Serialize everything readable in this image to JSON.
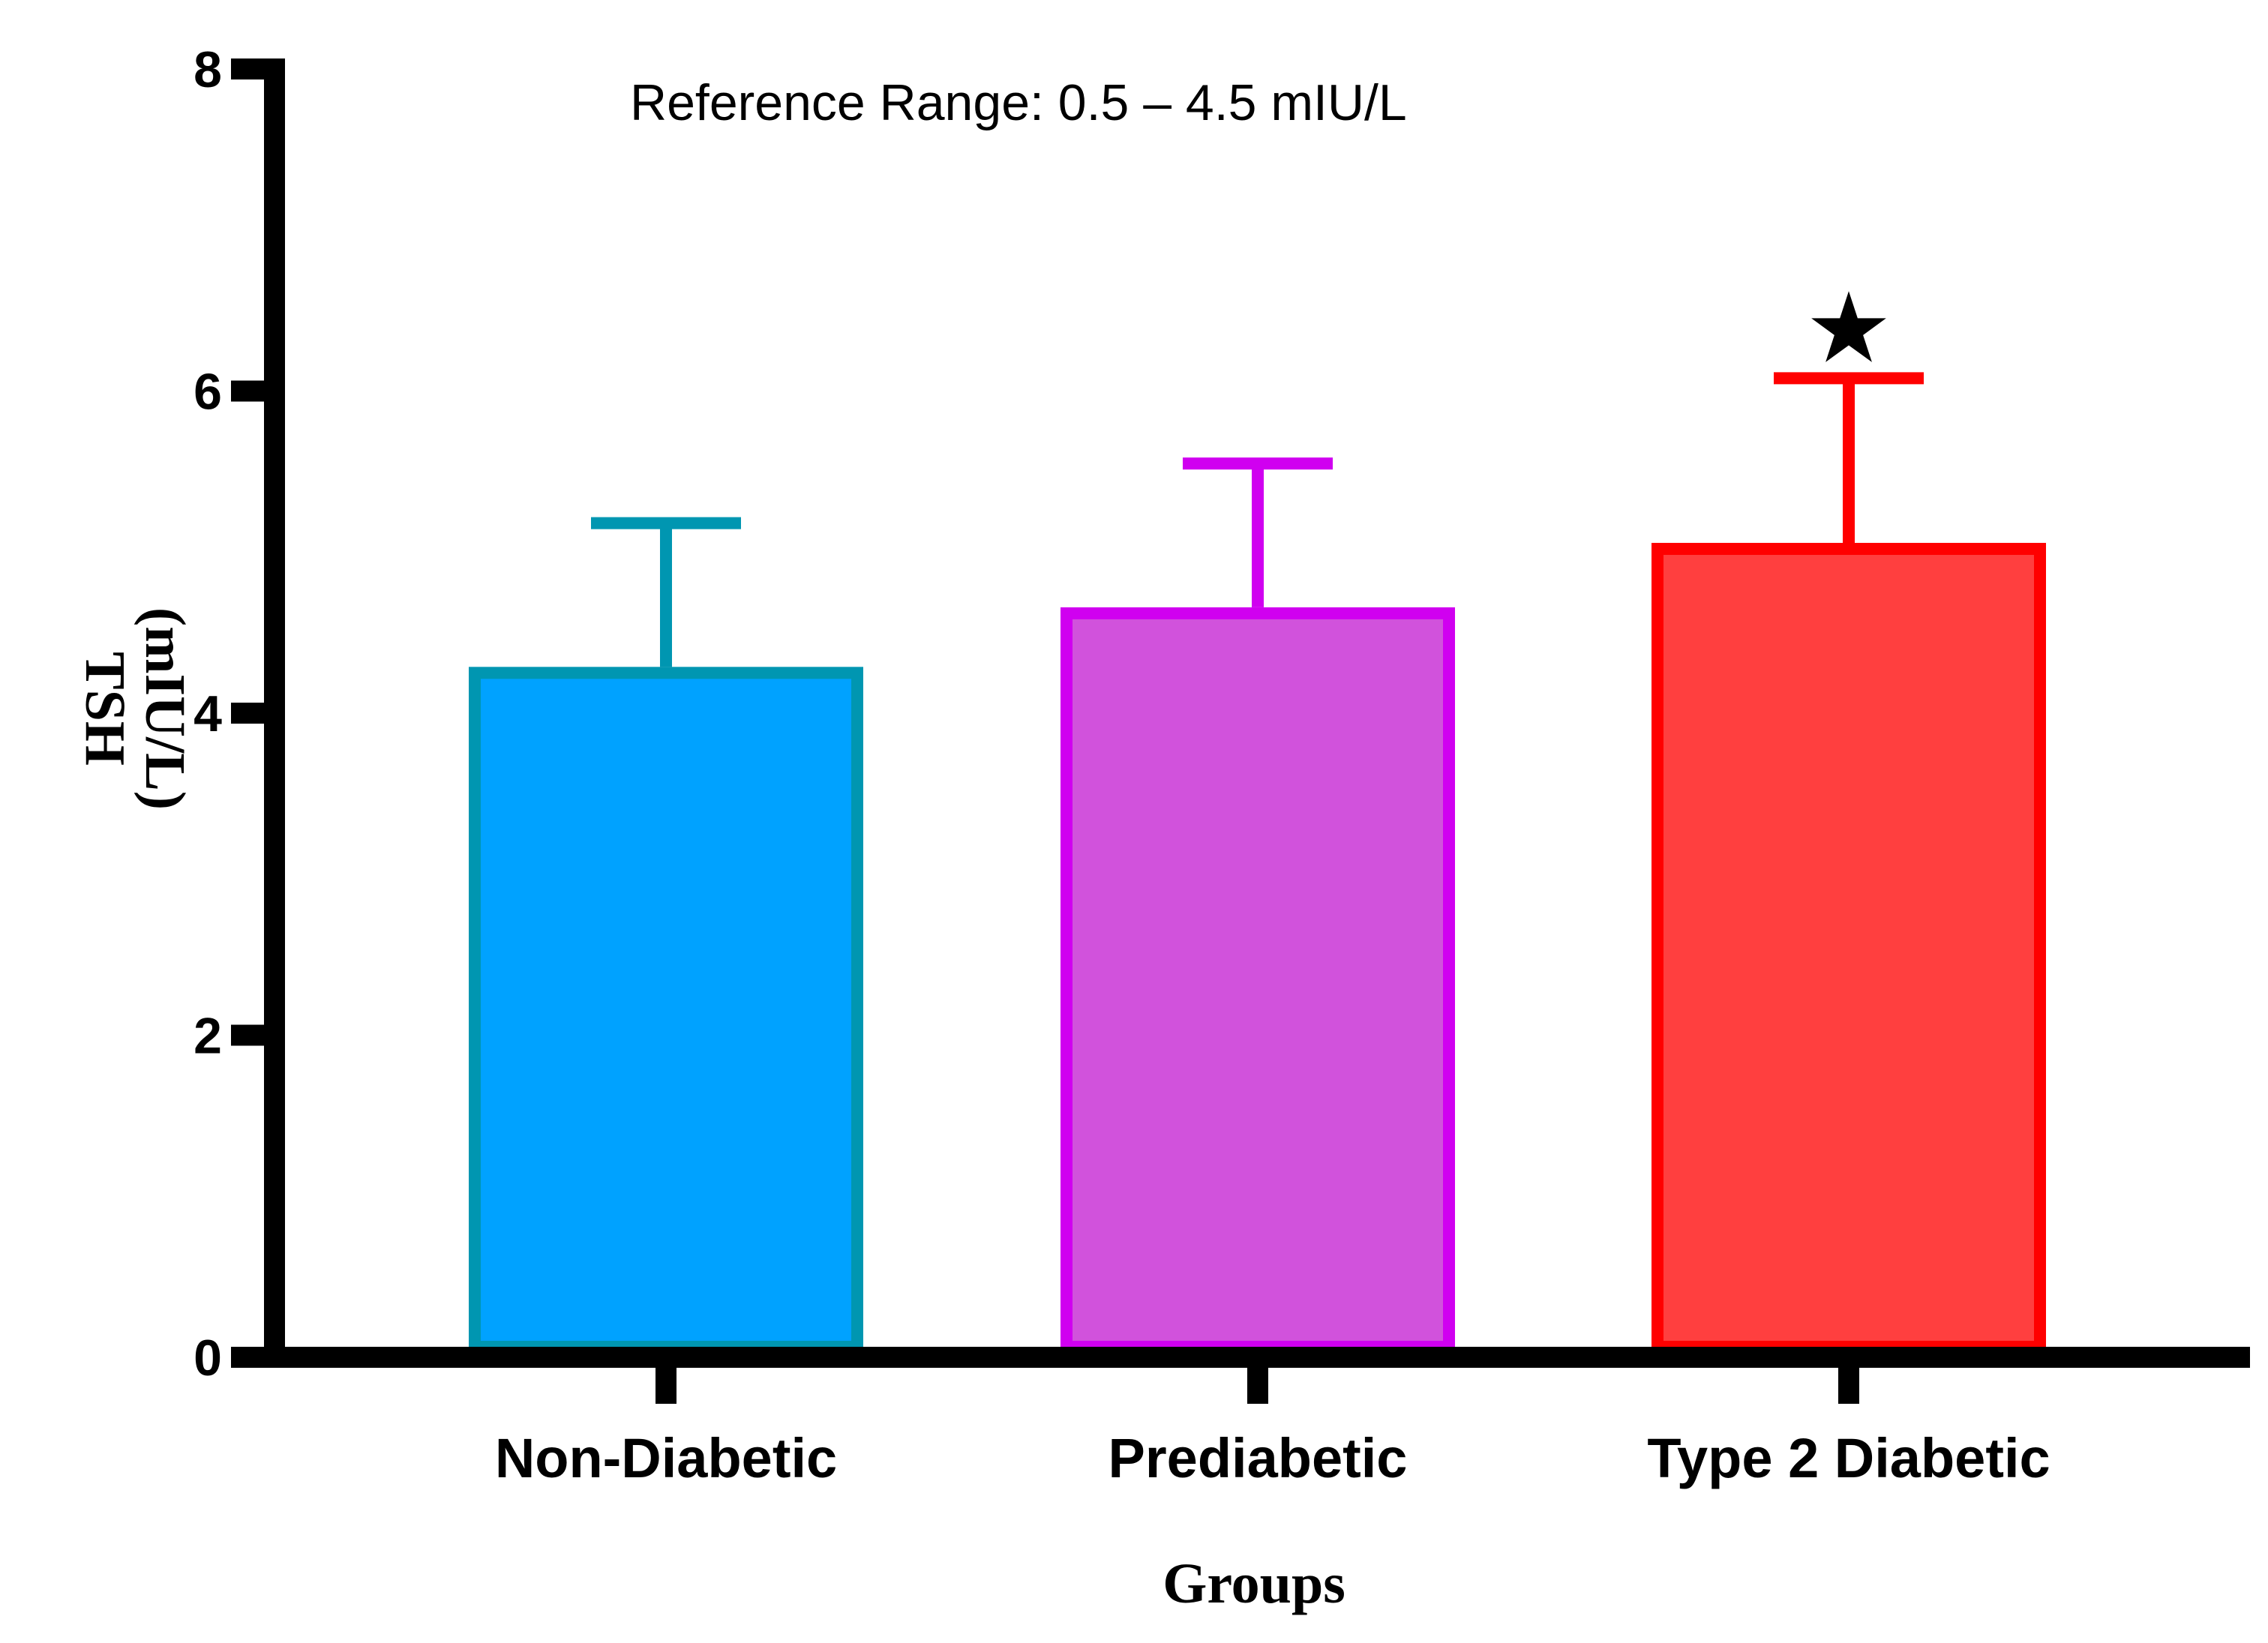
{
  "chart_data": {
    "type": "bar",
    "title": "",
    "xlabel": "Groups",
    "ylabel": [
      "TSH",
      "(mIU/L)"
    ],
    "ylim": [
      0,
      8
    ],
    "yticks": [
      0,
      2,
      4,
      6,
      8
    ],
    "grid": false,
    "annotation": "Reference Range: 0.5 – 4.5 mIU/L",
    "significance_marker": "★",
    "categories": [
      "Non-Diabetic",
      "Prediabetic",
      "Type 2 Diabetic"
    ],
    "values": [
      4.25,
      4.62,
      5.02
    ],
    "error_upper": [
      5.18,
      5.55,
      6.08
    ],
    "fill_colors": [
      "#00A2FF",
      "#D152DC",
      "#FF3F3F"
    ],
    "edge_colors": [
      "#0096B1",
      "#D000F0",
      "#FF0000"
    ],
    "significant": [
      false,
      false,
      true
    ]
  }
}
